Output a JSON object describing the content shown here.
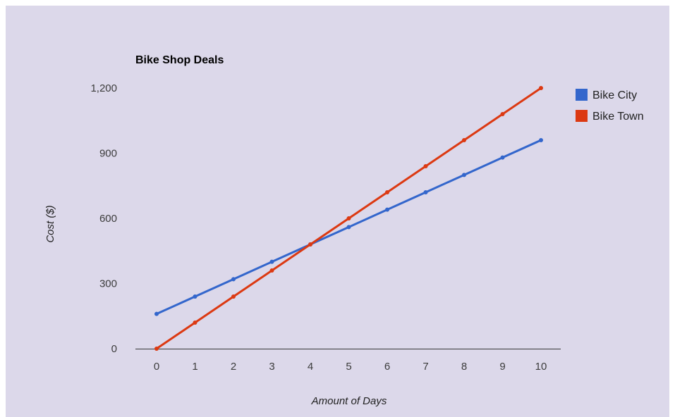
{
  "chart_data": {
    "type": "line",
    "title": "Bike Shop Deals",
    "xlabel": "Amount of Days",
    "ylabel": "Cost ($)",
    "x": [
      0,
      1,
      2,
      3,
      4,
      5,
      6,
      7,
      8,
      9,
      10
    ],
    "xticks": [
      "0",
      "1",
      "2",
      "3",
      "4",
      "5",
      "6",
      "7",
      "8",
      "9",
      "10"
    ],
    "yticks": [
      "0",
      "300",
      "600",
      "900",
      "1,200"
    ],
    "ytick_values": [
      0,
      300,
      600,
      900,
      1200
    ],
    "xlim": [
      0,
      10
    ],
    "ylim": [
      0,
      1200
    ],
    "grid": false,
    "legend_position": "right",
    "series": [
      {
        "name": "Bike City",
        "color": "#3366cc",
        "values": [
          160,
          240,
          320,
          400,
          480,
          560,
          640,
          720,
          800,
          880,
          960
        ]
      },
      {
        "name": "Bike Town",
        "color": "#dc3912",
        "values": [
          0,
          120,
          240,
          360,
          480,
          600,
          720,
          840,
          960,
          1080,
          1200
        ]
      }
    ]
  }
}
